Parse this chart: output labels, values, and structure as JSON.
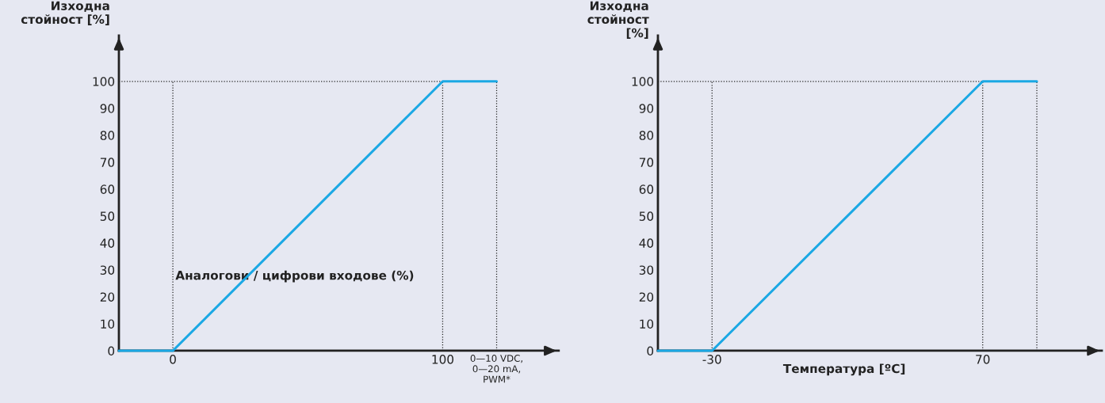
{
  "chart_data": [
    {
      "type": "line",
      "ylabel": "Изходна\nстойност [%]",
      "xlabel": "Аналогови / цифрови входове (%)",
      "x": [
        -20,
        0,
        100,
        120
      ],
      "series": [
        {
          "color": "#1ba8e4",
          "values": [
            0,
            0,
            100,
            100
          ]
        }
      ],
      "xlim": [
        -20,
        143
      ],
      "ylim": [
        0,
        117
      ],
      "xticks": [
        0,
        100,
        {
          "value": 120,
          "label": "0—10 VDC,\n0—20 mA,\nPWM*"
        }
      ],
      "yticks": [
        0,
        10,
        20,
        30,
        40,
        50,
        60,
        70,
        80,
        90,
        100
      ],
      "ref_lines": [
        {
          "axis": "x",
          "value": 0,
          "line_style": "dotted",
          "color": "#222222"
        },
        {
          "axis": "x",
          "value": 100,
          "line_style": "dotted",
          "color": "#222222"
        },
        {
          "axis": "x",
          "value": 120,
          "line_style": "dotted",
          "color": "#222222"
        },
        {
          "axis": "y",
          "value": 100,
          "line_style": "dotted",
          "color": "#222222"
        }
      ],
      "grid": false,
      "legend": false
    },
    {
      "type": "line",
      "ylabel": "Изходна\nстойност\n[%]",
      "xlabel": "Температура [ºC]",
      "x": [
        -50,
        -30,
        70,
        90
      ],
      "series": [
        {
          "color": "#1ba8e4",
          "values": [
            0,
            0,
            100,
            100
          ]
        }
      ],
      "xlim": [
        -50,
        114
      ],
      "ylim": [
        0,
        117
      ],
      "xticks": [
        -30,
        70,
        {
          "value": 90,
          "label": null
        }
      ],
      "yticks": [
        0,
        10,
        20,
        30,
        40,
        50,
        60,
        70,
        80,
        90,
        100
      ],
      "ref_lines": [
        {
          "axis": "x",
          "value": -30,
          "line_style": "dotted",
          "color": "#222222"
        },
        {
          "axis": "x",
          "value": 70,
          "line_style": "dotted",
          "color": "#222222"
        },
        {
          "axis": "x",
          "value": 90,
          "line_style": "dotted",
          "color": "#222222"
        },
        {
          "axis": "y",
          "value": 100,
          "line_style": "dotted",
          "color": "#222222"
        }
      ],
      "grid": false,
      "legend": false
    }
  ]
}
